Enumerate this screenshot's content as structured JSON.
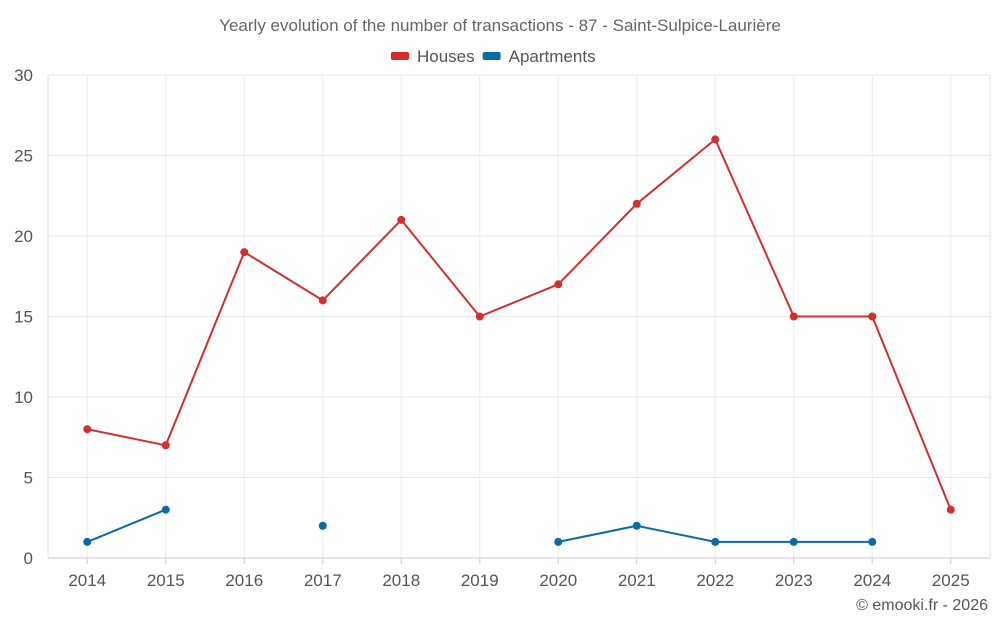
{
  "chart_data": {
    "type": "line",
    "title": "Yearly evolution of the number of transactions - 87 - Saint-Sulpice-Laurière",
    "categories": [
      "2014",
      "2015",
      "2016",
      "2017",
      "2018",
      "2019",
      "2020",
      "2021",
      "2022",
      "2023",
      "2024",
      "2025"
    ],
    "series": [
      {
        "name": "Houses",
        "color": "#d32f2f",
        "values": [
          8,
          7,
          19,
          16,
          21,
          15,
          17,
          22,
          26,
          15,
          15,
          3
        ]
      },
      {
        "name": "Apartments",
        "color": "#0b6aa2",
        "values": [
          1,
          3,
          null,
          2,
          null,
          null,
          1,
          2,
          1,
          1,
          1,
          null
        ]
      }
    ],
    "ylim": [
      0,
      30
    ],
    "yticks": [
      0,
      5,
      10,
      15,
      20,
      25,
      30
    ],
    "xlabel": "",
    "ylabel": "",
    "grid": true,
    "legend": "top-center"
  },
  "credit": "© emooki.fr - 2026"
}
